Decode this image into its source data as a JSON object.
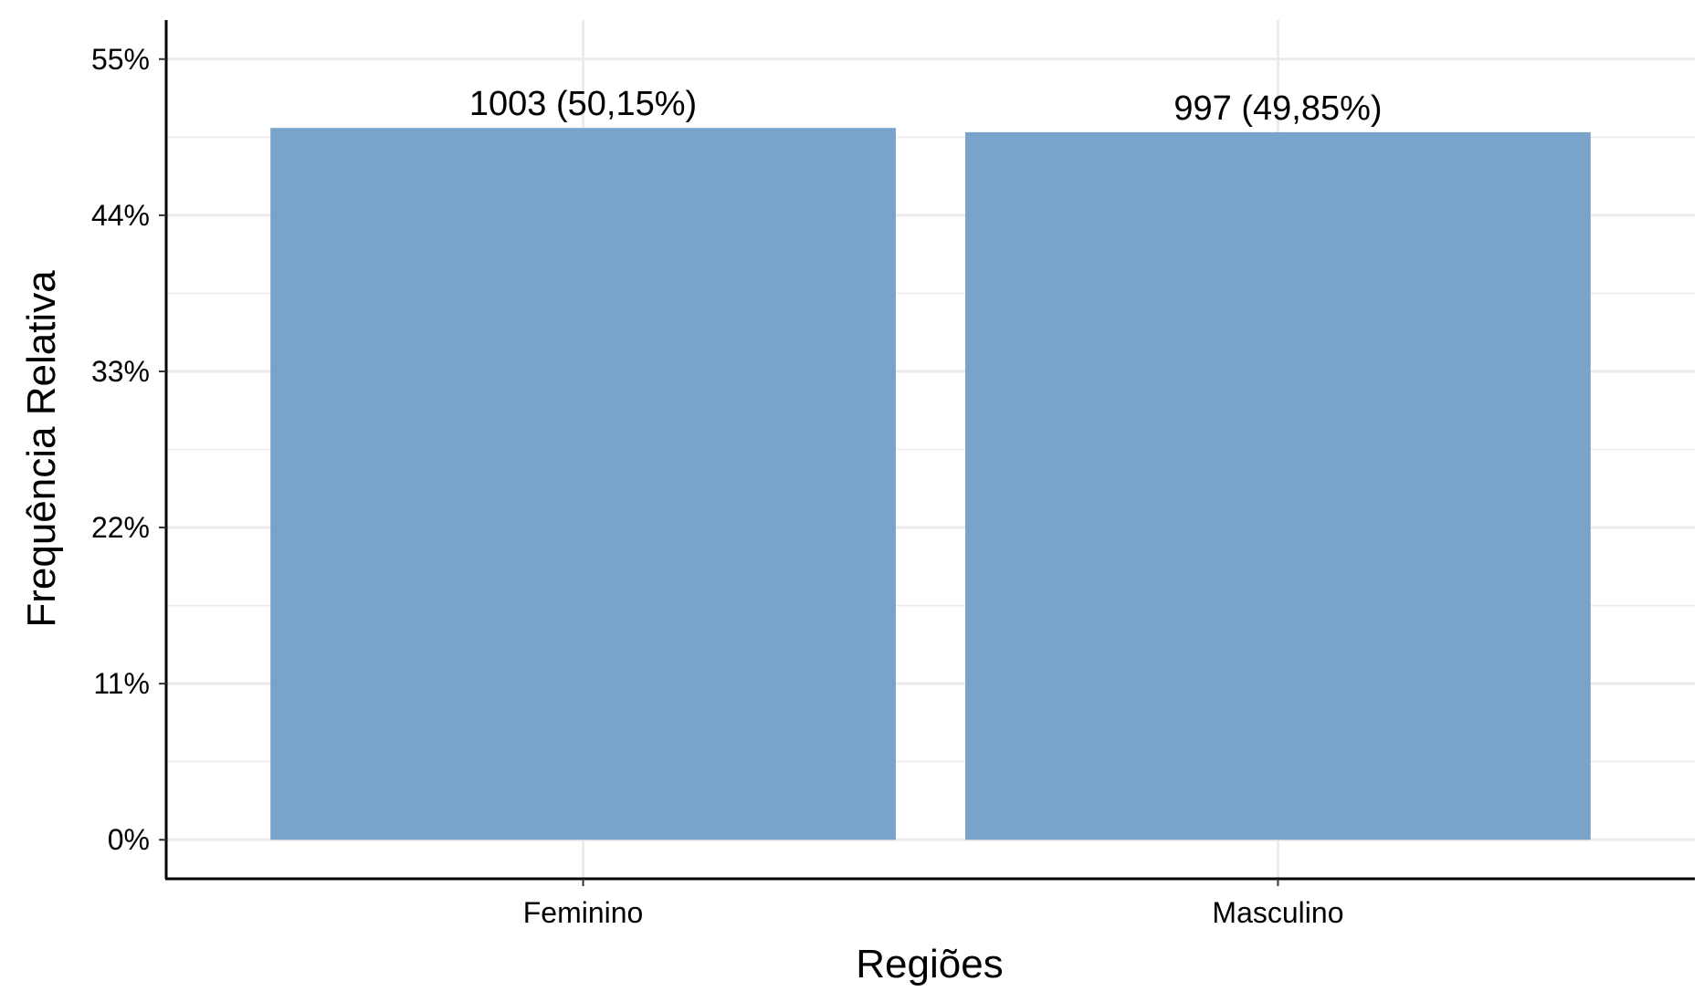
{
  "chart_data": {
    "type": "bar",
    "xlabel": "Regiões",
    "ylabel": "Frequência Relativa",
    "categories": [
      "Feminino",
      "Masculino"
    ],
    "values": [
      50.15,
      49.85
    ],
    "bar_labels": [
      "1003 (50,15%)",
      "997 (49,85%)"
    ],
    "ylim": [
      -2.75,
      57.75
    ],
    "yticks": [
      0,
      11,
      22,
      33,
      44,
      55
    ],
    "ytick_labels": [
      "0%",
      "11%",
      "22%",
      "33%",
      "44%",
      "55%"
    ],
    "bar_color": "#7aa3cb",
    "grid": true,
    "legend": "none"
  }
}
